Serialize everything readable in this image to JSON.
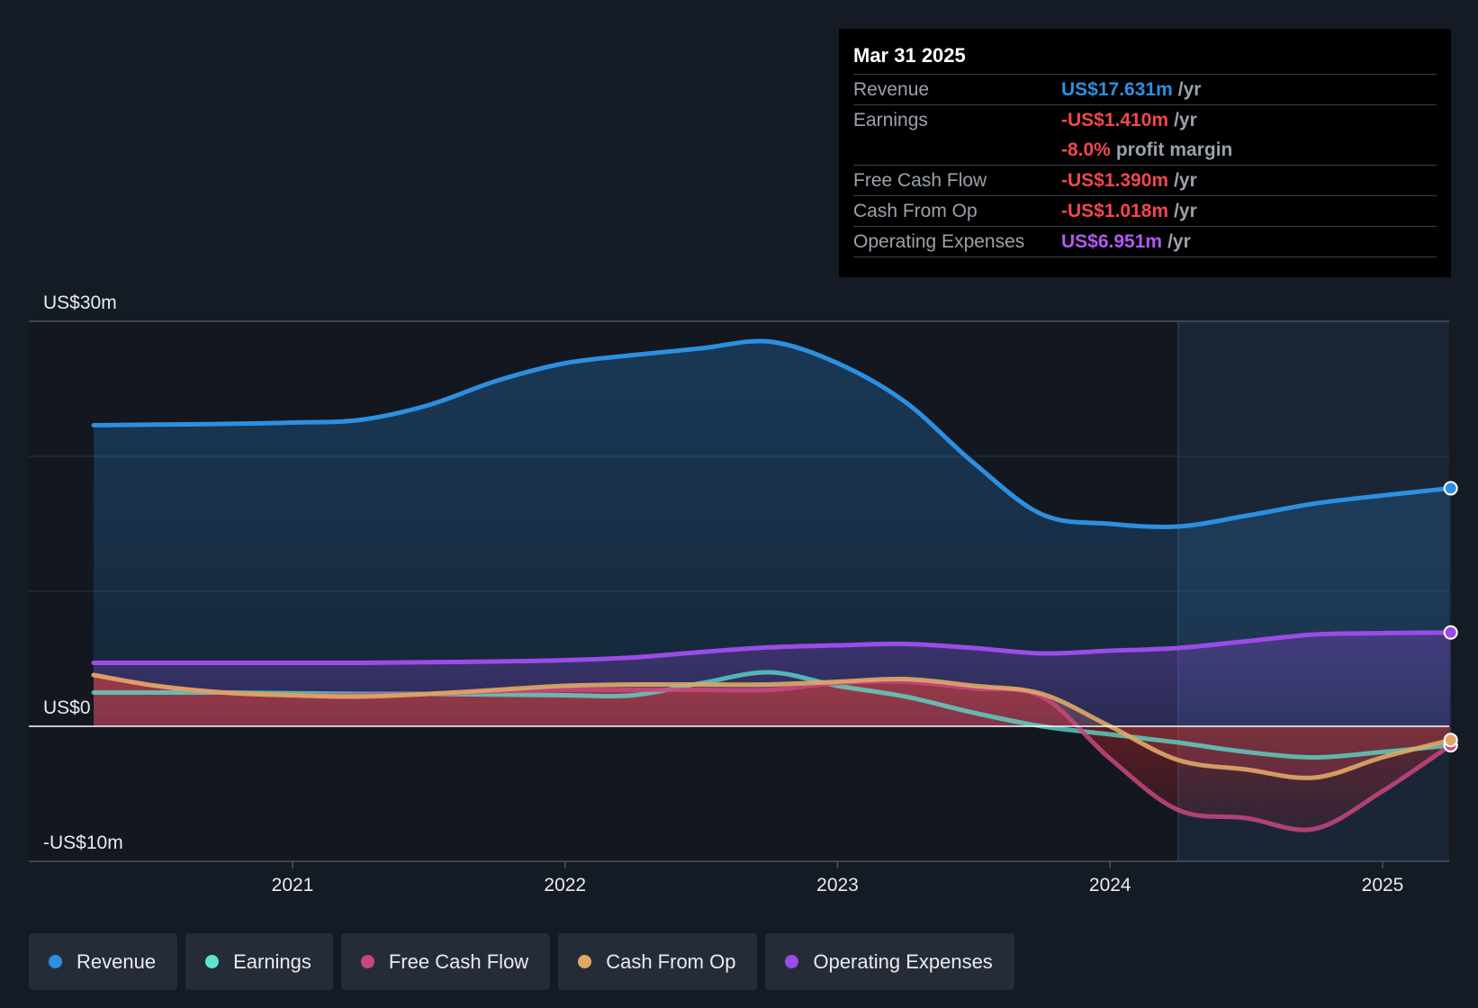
{
  "colors": {
    "background": "#151b24",
    "revenue": "#2d8fe0",
    "earnings": "#5ee3d0",
    "free_cash_flow": "#c9477f",
    "cash_from_op": "#e0a866",
    "operating_expenses": "#9b4ce8",
    "negative": "#f0484f"
  },
  "tooltip": {
    "date": "Mar 31 2025",
    "rows": [
      {
        "label": "Revenue",
        "value": "US$17.631m",
        "unit": "/yr",
        "color": "#2d8fe0"
      },
      {
        "label": "Earnings",
        "value": "-US$1.410m",
        "unit": "/yr",
        "color": "#f0484f"
      },
      {
        "label": "",
        "value": "-8.0%",
        "unit": "profit margin",
        "color": "#f0484f"
      },
      {
        "label": "Free Cash Flow",
        "value": "-US$1.390m",
        "unit": "/yr",
        "color": "#f0484f"
      },
      {
        "label": "Cash From Op",
        "value": "-US$1.018m",
        "unit": "/yr",
        "color": "#f0484f"
      },
      {
        "label": "Operating Expenses",
        "value": "US$6.951m",
        "unit": "/yr",
        "color": "#b25af0"
      }
    ]
  },
  "legend": [
    {
      "label": "Revenue",
      "color": "#2d8fe0"
    },
    {
      "label": "Earnings",
      "color": "#5ee3d0"
    },
    {
      "label": "Free Cash Flow",
      "color": "#c9477f"
    },
    {
      "label": "Cash From Op",
      "color": "#e0a866"
    },
    {
      "label": "Operating Expenses",
      "color": "#9b4ce8"
    }
  ],
  "chart_data": {
    "type": "area",
    "y_axis_labels": [
      {
        "value": 30,
        "label": "US$30m"
      },
      {
        "value": 0,
        "label": "US$0"
      },
      {
        "value": -10,
        "label": "-US$10m"
      }
    ],
    "ylim": [
      -10,
      30
    ],
    "xlim": [
      2020.25,
      2025.25
    ],
    "x_ticks": [
      {
        "value": 2021,
        "label": "2021"
      },
      {
        "value": 2022,
        "label": "2022"
      },
      {
        "value": 2023,
        "label": "2023"
      },
      {
        "value": 2024,
        "label": "2024"
      },
      {
        "value": 2025,
        "label": "2025"
      }
    ],
    "gridlines": [
      30,
      20,
      10,
      0,
      -10
    ],
    "highlight_start": 2024.25,
    "series": [
      {
        "name": "Revenue",
        "key": "revenue",
        "x": [
          2020.27,
          2020.5,
          2020.75,
          2021.0,
          2021.25,
          2021.5,
          2021.75,
          2022.0,
          2022.25,
          2022.5,
          2022.75,
          2023.0,
          2023.25,
          2023.5,
          2023.75,
          2024.0,
          2024.25,
          2024.5,
          2024.75,
          2025.0,
          2025.25
        ],
        "values": [
          22.3,
          22.35,
          22.4,
          22.5,
          22.7,
          23.8,
          25.6,
          26.9,
          27.5,
          28.0,
          28.5,
          26.9,
          24.0,
          19.5,
          15.7,
          15.0,
          14.8,
          15.6,
          16.5,
          17.1,
          17.631
        ]
      },
      {
        "name": "Earnings",
        "key": "earnings",
        "x": [
          2020.27,
          2020.5,
          2020.75,
          2021.0,
          2021.25,
          2021.5,
          2021.75,
          2022.0,
          2022.25,
          2022.5,
          2022.75,
          2023.0,
          2023.25,
          2023.5,
          2023.75,
          2024.0,
          2024.25,
          2024.5,
          2024.75,
          2025.0,
          2025.25
        ],
        "values": [
          2.5,
          2.5,
          2.5,
          2.45,
          2.4,
          2.4,
          2.35,
          2.3,
          2.3,
          3.2,
          4.0,
          3.0,
          2.2,
          1.0,
          0.0,
          -0.6,
          -1.2,
          -1.9,
          -2.3,
          -1.9,
          -1.41
        ]
      },
      {
        "name": "Free Cash Flow",
        "key": "free_cash_flow",
        "x": [
          2020.27,
          2020.5,
          2020.75,
          2021.0,
          2021.25,
          2021.5,
          2021.75,
          2022.0,
          2022.25,
          2022.5,
          2022.75,
          2023.0,
          2023.25,
          2023.5,
          2023.75,
          2024.0,
          2024.25,
          2024.5,
          2024.75,
          2025.0,
          2025.25
        ],
        "values": [
          3.8,
          3.0,
          2.5,
          2.3,
          2.3,
          2.4,
          2.6,
          2.7,
          2.7,
          2.7,
          2.7,
          3.2,
          3.3,
          2.8,
          2.2,
          -2.4,
          -6.2,
          -6.8,
          -7.6,
          -4.8,
          -1.39
        ]
      },
      {
        "name": "Cash From Op",
        "key": "cash_from_op",
        "x": [
          2020.27,
          2020.5,
          2020.75,
          2021.0,
          2021.25,
          2021.5,
          2021.75,
          2022.0,
          2022.25,
          2022.5,
          2022.75,
          2023.0,
          2023.25,
          2023.5,
          2023.75,
          2024.0,
          2024.25,
          2024.5,
          2024.75,
          2025.0,
          2025.25
        ],
        "values": [
          3.8,
          3.0,
          2.5,
          2.3,
          2.2,
          2.4,
          2.7,
          3.0,
          3.1,
          3.1,
          3.1,
          3.3,
          3.5,
          3.0,
          2.4,
          0.0,
          -2.5,
          -3.2,
          -3.8,
          -2.3,
          -1.018
        ]
      },
      {
        "name": "Operating Expenses",
        "key": "operating_expenses",
        "x": [
          2020.27,
          2020.5,
          2020.75,
          2021.0,
          2021.25,
          2021.5,
          2021.75,
          2022.0,
          2022.25,
          2022.5,
          2022.75,
          2023.0,
          2023.25,
          2023.5,
          2023.75,
          2024.0,
          2024.25,
          2024.5,
          2024.75,
          2025.0,
          2025.25
        ],
        "values": [
          4.7,
          4.7,
          4.7,
          4.7,
          4.7,
          4.75,
          4.8,
          4.9,
          5.1,
          5.5,
          5.85,
          6.0,
          6.1,
          5.8,
          5.4,
          5.6,
          5.8,
          6.3,
          6.8,
          6.9,
          6.951
        ]
      }
    ]
  }
}
